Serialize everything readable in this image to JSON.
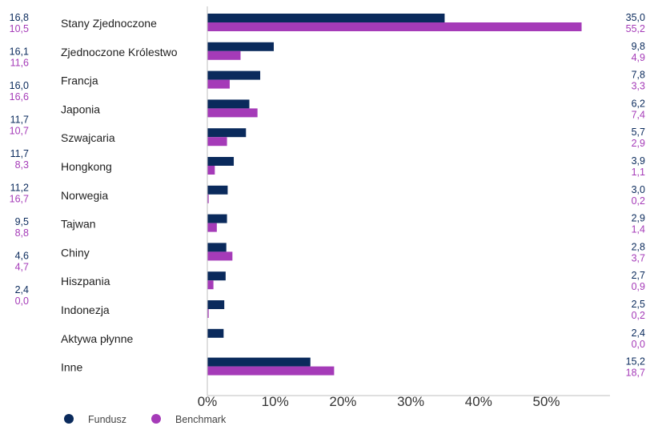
{
  "colors": {
    "fund": "#0a2a5c",
    "benchmark": "#a53bb8",
    "axis": "#bfbfbf"
  },
  "legend": {
    "fund_label": "Fundusz",
    "benchmark_label": "Benchmark"
  },
  "chart_data": {
    "type": "bar",
    "orientation": "horizontal",
    "title": "",
    "xlabel": "",
    "ylabel": "",
    "xlim": [
      0,
      60
    ],
    "x_ticks": [
      "0%",
      "10%",
      "20%",
      "30%",
      "40%",
      "50%"
    ],
    "x_tick_values": [
      0,
      10,
      20,
      30,
      40,
      50
    ],
    "grid": false,
    "legend_position": "bottom-left",
    "categories": [
      "Stany Zjednoczone",
      "Zjednoczone Królestwo",
      "Francja",
      "Japonia",
      "Szwajcaria",
      "Hongkong",
      "Norwegia",
      "Tajwan",
      "Chiny",
      "Hiszpania",
      "Indonezja",
      "Aktywa płynne",
      "Inne"
    ],
    "series": [
      {
        "name": "Fundusz",
        "values": [
          35.0,
          9.8,
          7.8,
          6.2,
          5.7,
          3.9,
          3.0,
          2.9,
          2.8,
          2.7,
          2.5,
          2.4,
          15.2
        ],
        "labels": [
          "35,0",
          "9,8",
          "7,8",
          "6,2",
          "5,7",
          "3,9",
          "3,0",
          "2,9",
          "2,8",
          "2,7",
          "2,5",
          "2,4",
          "15,2"
        ]
      },
      {
        "name": "Benchmark",
        "values": [
          55.2,
          4.9,
          3.3,
          7.4,
          2.9,
          1.1,
          0.2,
          1.4,
          3.7,
          0.9,
          0.2,
          0.0,
          18.7
        ],
        "labels": [
          "55,2",
          "4,9",
          "3,3",
          "7,4",
          "2,9",
          "1,1",
          "0,2",
          "1,4",
          "3,7",
          "0,9",
          "0,2",
          "0,0",
          "18,7"
        ]
      }
    ],
    "left_values": {
      "fund": [
        "16,8",
        "16,1",
        "16,0",
        "11,7",
        "11,7",
        "11,2",
        "9,5",
        "4,6",
        "2,4"
      ],
      "benchmark": [
        "10,5",
        "11,6",
        "16,6",
        "10,7",
        "8,3",
        "16,7",
        "8,8",
        "4,7",
        "0,0"
      ]
    }
  }
}
